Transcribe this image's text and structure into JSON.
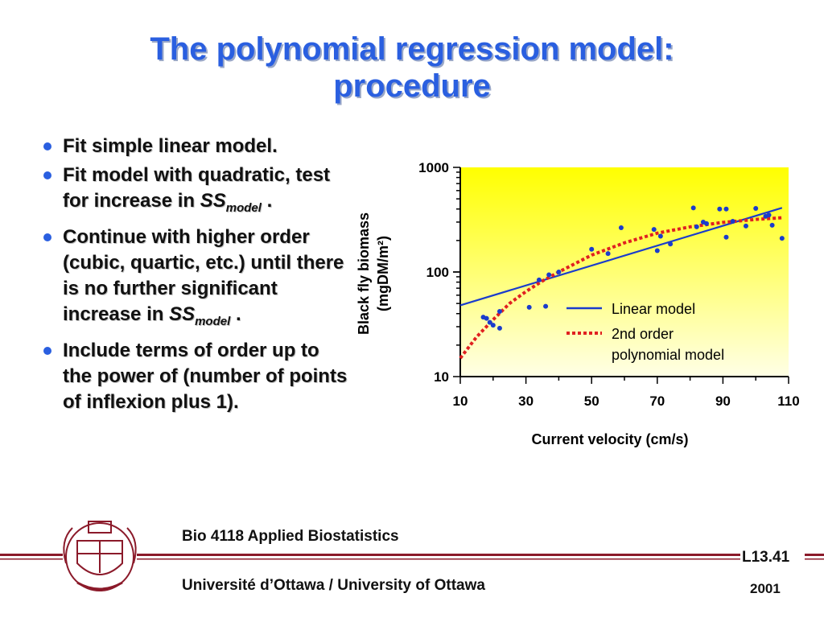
{
  "slide": {
    "title_line1": "The polynomial regression model:",
    "title_line2": "procedure"
  },
  "bullets": [
    {
      "text": "Fit simple linear model."
    },
    {
      "pre": "Fit model with quadratic, test for increase in ",
      "ss": "SS",
      "sub": "model",
      "post": " ."
    },
    {
      "pre": "Continue with higher order (cubic, quartic, etc.) until there is no further significant increase in ",
      "ss": "SS",
      "sub": "model",
      "post": " ."
    },
    {
      "text": "Include terms of order up to the power of (number of points of inflexion plus 1)."
    }
  ],
  "colors": {
    "title": "#2a5fe0",
    "bullet_dot": "#2a5fe0",
    "plot_bg_top": "#ffff00",
    "plot_bg_bottom": "#ffffe6",
    "points": "#1a3ccc",
    "linear": "#1a3ccc",
    "polynomial": "#e02020",
    "footer_rule": "#8b1a2a"
  },
  "chart_data": {
    "type": "scatter",
    "title": "",
    "xlabel": "Current velocity (cm/s)",
    "ylabel_line1": "Black fly biomass",
    "ylabel_line2": "(mgDM/m²)",
    "xlim": [
      10,
      110
    ],
    "ylim": [
      10,
      1000
    ],
    "y_scale": "log",
    "grid": false,
    "x_ticks": [
      10,
      30,
      50,
      70,
      90,
      110
    ],
    "x_tick_labels": [
      "10",
      "30",
      "50",
      "70",
      "90",
      "110"
    ],
    "y_tick_labels": [
      "1000",
      "100",
      "10"
    ],
    "y_tick_values": [
      1000,
      100,
      10
    ],
    "points": [
      {
        "x": 17,
        "y": 37
      },
      {
        "x": 18,
        "y": 36
      },
      {
        "x": 19,
        "y": 33
      },
      {
        "x": 20,
        "y": 31
      },
      {
        "x": 22,
        "y": 42
      },
      {
        "x": 22,
        "y": 29
      },
      {
        "x": 31,
        "y": 46
      },
      {
        "x": 34,
        "y": 84
      },
      {
        "x": 36,
        "y": 47
      },
      {
        "x": 37,
        "y": 94
      },
      {
        "x": 40,
        "y": 100
      },
      {
        "x": 50,
        "y": 165
      },
      {
        "x": 55,
        "y": 150
      },
      {
        "x": 59,
        "y": 265
      },
      {
        "x": 69,
        "y": 255
      },
      {
        "x": 70,
        "y": 160
      },
      {
        "x": 71,
        "y": 220
      },
      {
        "x": 74,
        "y": 185
      },
      {
        "x": 81,
        "y": 410
      },
      {
        "x": 82,
        "y": 270
      },
      {
        "x": 84,
        "y": 300
      },
      {
        "x": 85,
        "y": 290
      },
      {
        "x": 89,
        "y": 400
      },
      {
        "x": 91,
        "y": 400
      },
      {
        "x": 91,
        "y": 215
      },
      {
        "x": 93,
        "y": 305
      },
      {
        "x": 97,
        "y": 275
      },
      {
        "x": 100,
        "y": 405
      },
      {
        "x": 103,
        "y": 340
      },
      {
        "x": 104,
        "y": 350
      },
      {
        "x": 105,
        "y": 280
      },
      {
        "x": 108,
        "y": 210
      }
    ],
    "series": [
      {
        "name": "Linear model",
        "type": "line",
        "x": [
          10,
          108
        ],
        "y": [
          48,
          410
        ]
      },
      {
        "name": "2nd order polynomial model",
        "type": "dotted",
        "x": [
          10,
          15,
          20,
          25,
          30,
          35,
          40,
          50,
          60,
          70,
          80,
          90,
          100,
          108
        ],
        "y": [
          15,
          24,
          35,
          50,
          65,
          82,
          100,
          145,
          190,
          235,
          270,
          298,
          318,
          330
        ]
      }
    ],
    "legend": {
      "placement": "lower-right",
      "entries": [
        "Linear model",
        "2nd order",
        "polynomial model"
      ]
    }
  },
  "footer": {
    "course": "Bio 4118 Applied Biostatistics",
    "university": "Université d’Ottawa / University of Ottawa",
    "lecture": "L13.41",
    "year": "2001"
  }
}
